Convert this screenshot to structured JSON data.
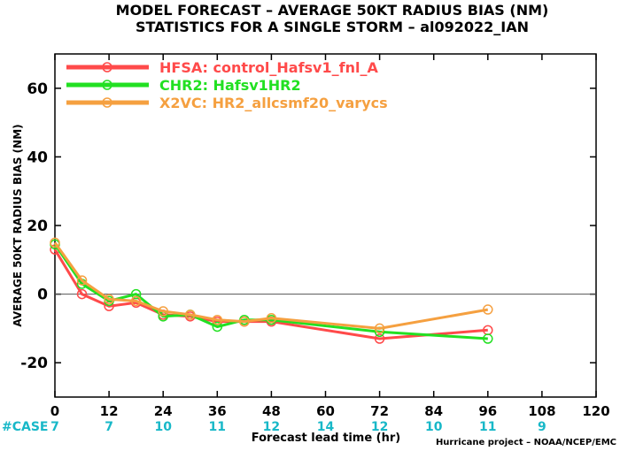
{
  "title_line1": "MODEL FORECAST – AVERAGE 50KT RADIUS BIAS (NM)",
  "title_line2": "STATISTICS FOR A SINGLE STORM – al092022_IAN",
  "credit": "Hurricane project – NOAA/NCEP/EMC",
  "chart_data": {
    "type": "line",
    "xlabel": "Forecast lead time (hr)",
    "ylabel": "AVERAGE 50KT RADIUS BIAS (NM)",
    "xlim": [
      0,
      120
    ],
    "ylim": [
      -30,
      70
    ],
    "x_ticks": [
      0,
      12,
      24,
      36,
      48,
      60,
      72,
      84,
      96,
      108,
      120
    ],
    "y_ticks": [
      -20,
      0,
      20,
      40,
      60
    ],
    "zero_line": true,
    "grid": false,
    "legend_position": "top-left",
    "case_label": "#CASE",
    "cases": [
      {
        "x": 0,
        "n": "7"
      },
      {
        "x": 12,
        "n": "7"
      },
      {
        "x": 24,
        "n": "10"
      },
      {
        "x": 36,
        "n": "11"
      },
      {
        "x": 48,
        "n": "12"
      },
      {
        "x": 60,
        "n": "14"
      },
      {
        "x": 72,
        "n": "12"
      },
      {
        "x": 84,
        "n": "10"
      },
      {
        "x": 96,
        "n": "11"
      },
      {
        "x": 108,
        "n": "9"
      }
    ],
    "series": [
      {
        "name": "HFSA: control_Hafsv1_fnl_A",
        "color": "#ff4a4a",
        "x": [
          0,
          6,
          12,
          18,
          24,
          30,
          36,
          42,
          48,
          72,
          96
        ],
        "y": [
          13,
          0,
          -3.5,
          -2.5,
          -6,
          -6.5,
          -8,
          -8,
          -8,
          -13,
          -10.5
        ]
      },
      {
        "name": "CHR2: Hafsv1HR2",
        "color": "#22e022",
        "x": [
          0,
          6,
          12,
          18,
          24,
          30,
          36,
          42,
          48,
          72,
          96
        ],
        "y": [
          14.5,
          3,
          -2,
          0,
          -6.5,
          -6,
          -9.5,
          -7.5,
          -7.5,
          -11,
          -13
        ]
      },
      {
        "name": "X2VC: HR2_allcsmf20_varycs",
        "color": "#f5a040",
        "x": [
          0,
          6,
          12,
          18,
          24,
          30,
          36,
          42,
          48,
          72,
          96
        ],
        "y": [
          15,
          4,
          -1.5,
          -2,
          -5,
          -6,
          -7.5,
          -8,
          -7,
          -10,
          -4.5
        ]
      }
    ]
  }
}
